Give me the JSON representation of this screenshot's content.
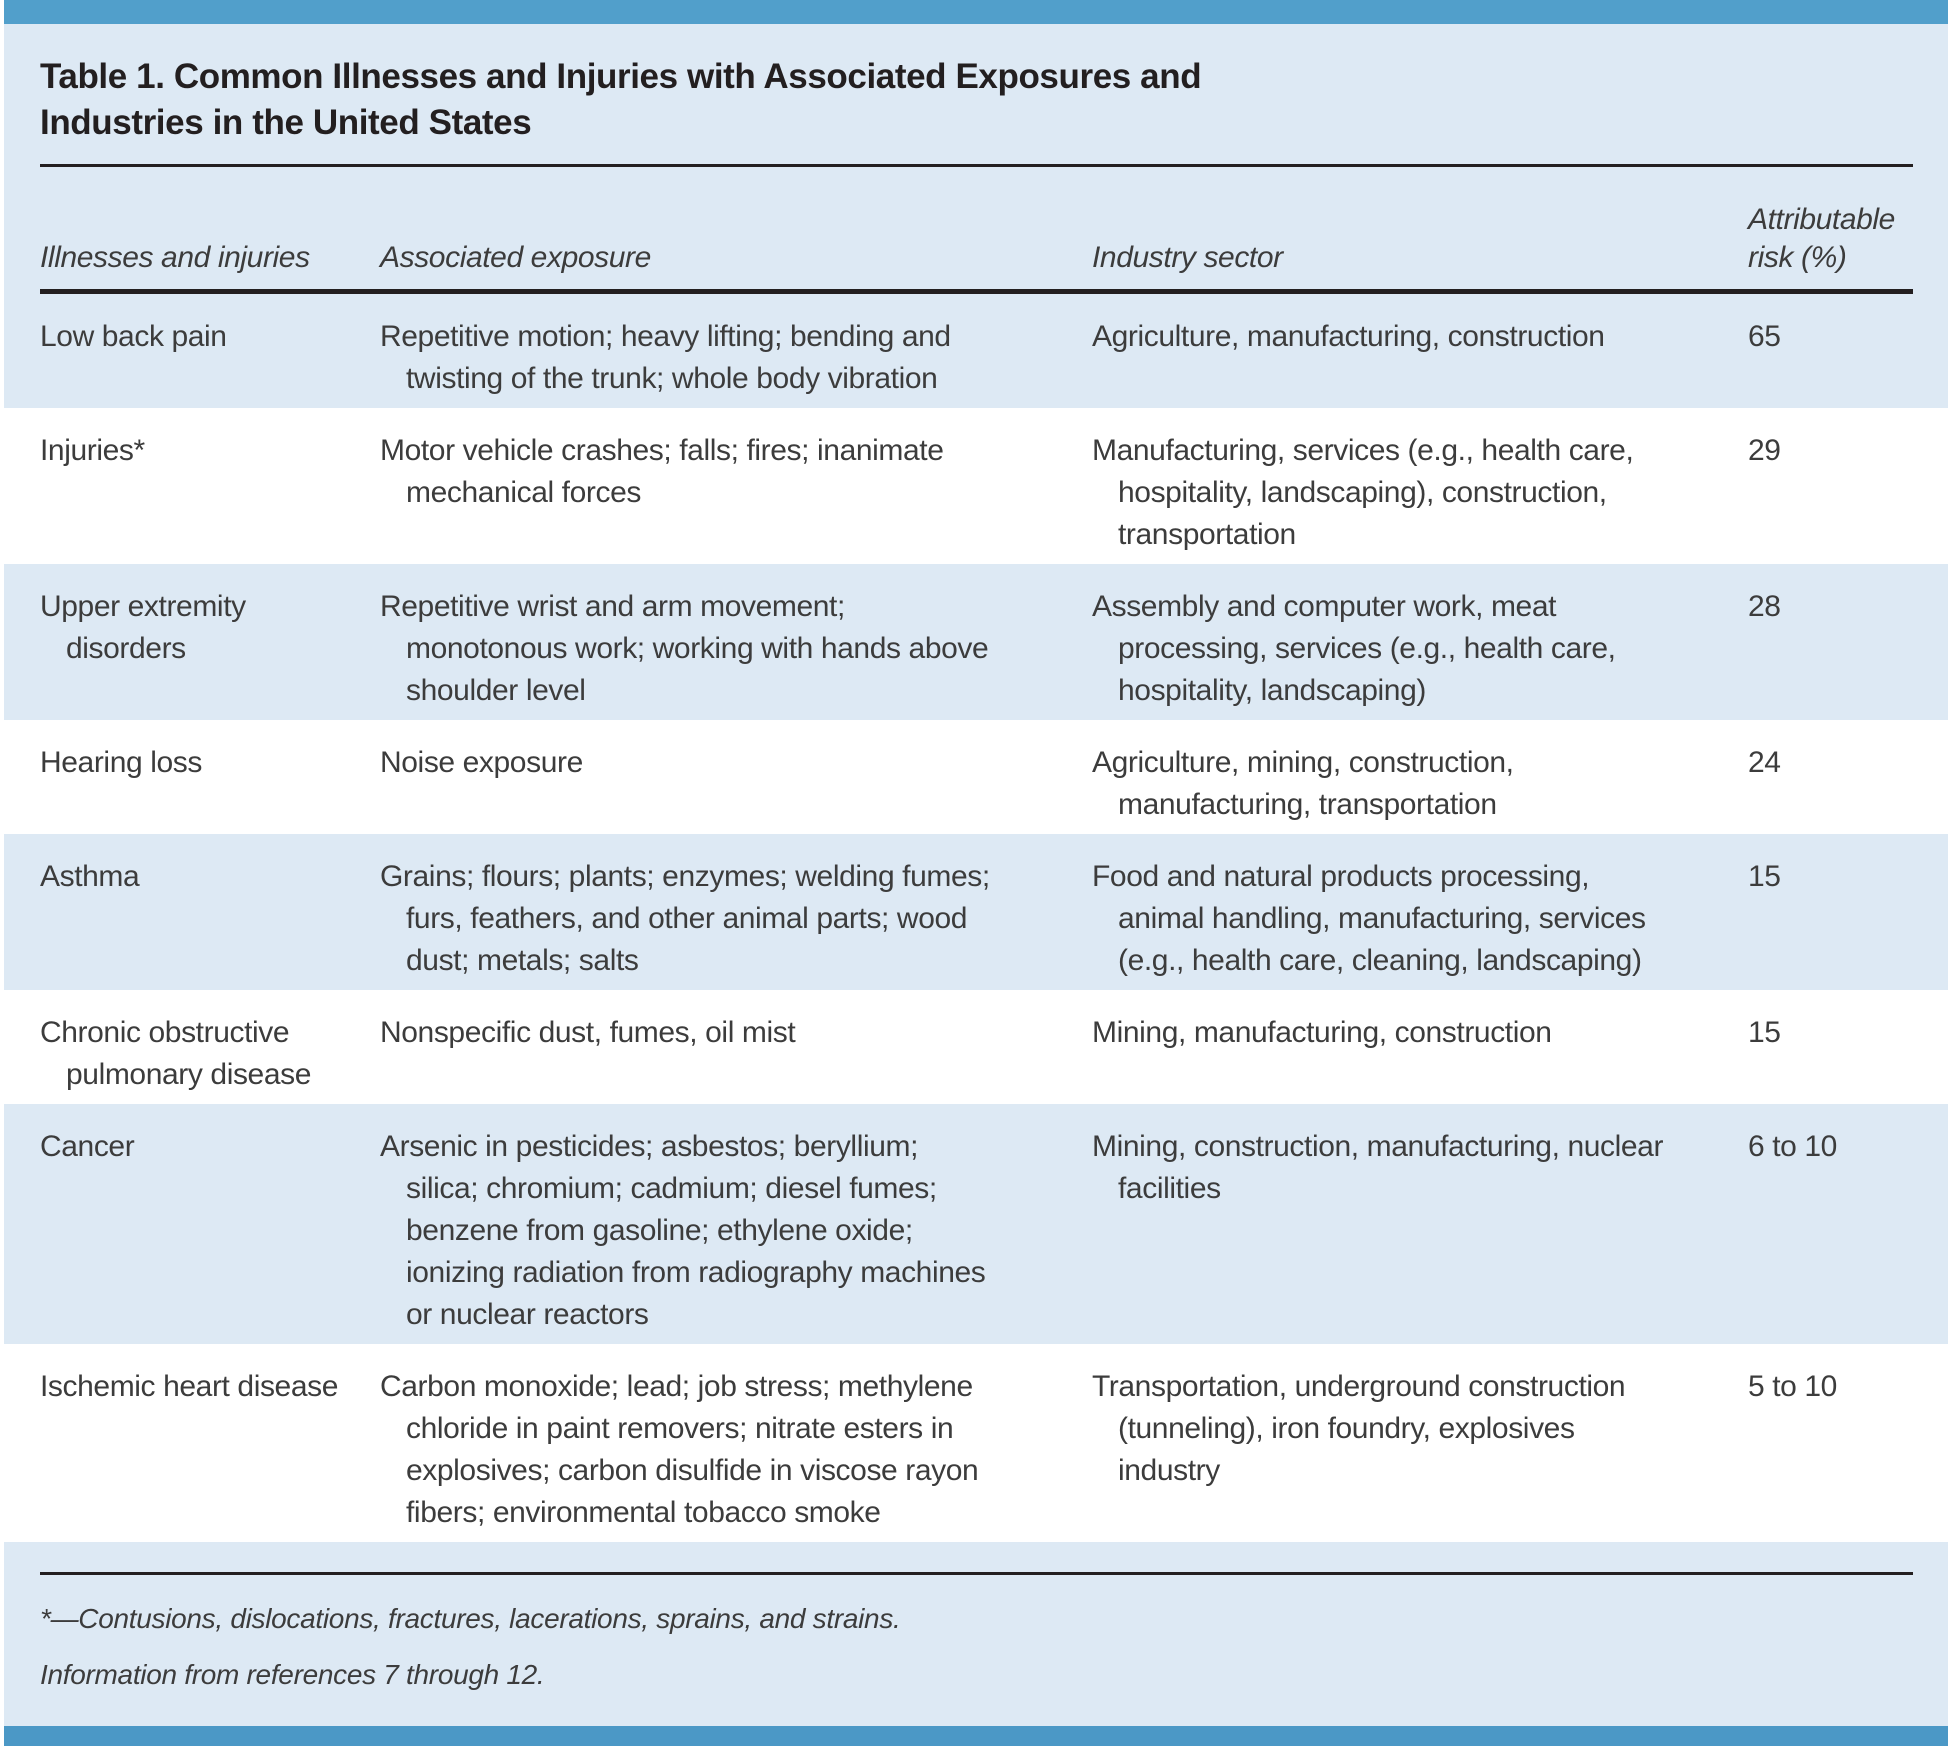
{
  "table": {
    "title": "Table 1. Common Illnesses and Injuries with Associated Exposures and Industries in the United States",
    "columns": [
      "Illnesses and injuries",
      "Associated exposure",
      "Industry sector",
      "Attributable risk (%)"
    ],
    "rows": [
      {
        "illness": "Low back pain",
        "exposure": "Repetitive motion; heavy lifting; bending and twisting of the trunk; whole body vibration",
        "industry": "Agriculture, manufacturing, construction",
        "risk": "65"
      },
      {
        "illness": "Injuries*",
        "exposure": "Motor vehicle crashes; falls; fires; inanimate mechanical forces",
        "industry": "Manufacturing, services (e.g., health care, hospitality, landscaping), construction, transportation",
        "risk": "29"
      },
      {
        "illness": "Upper extremity disorders",
        "exposure": "Repetitive wrist and arm movement; monotonous work; working with hands above shoulder level",
        "industry": "Assembly and computer work, meat processing, services (e.g., health care, hospitality, landscaping)",
        "risk": "28"
      },
      {
        "illness": "Hearing loss",
        "exposure": "Noise exposure",
        "industry": "Agriculture, mining, construction, manufacturing, transportation",
        "risk": "24"
      },
      {
        "illness": "Asthma",
        "exposure": "Grains; flours; plants; enzymes; welding fumes; furs, feathers, and other animal parts; wood dust; metals; salts",
        "industry": "Food and natural products processing, animal handling, manufacturing, services (e.g., health care, cleaning, landscaping)",
        "risk": "15"
      },
      {
        "illness": "Chronic obstructive pulmonary disease",
        "exposure": "Nonspecific dust, fumes, oil mist",
        "industry": "Mining, manufacturing, construction",
        "risk": "15"
      },
      {
        "illness": "Cancer",
        "exposure": "Arsenic in pesticides; asbestos; beryllium; silica; chromium; cadmium; diesel fumes; benzene from gasoline; ethylene oxide; ionizing radiation from radiography machines or nuclear reactors",
        "industry": "Mining, construction, manufacturing, nuclear facilities",
        "risk": "6 to 10"
      },
      {
        "illness": "Ischemic heart disease",
        "exposure": "Carbon monoxide; lead; job stress; methylene chloride in paint removers; nitrate esters in explosives; carbon disulfide in viscose rayon fibers; environmental tobacco smoke",
        "industry": "Transportation, underground construction (tunneling), iron foundry, explosives industry",
        "risk": "5 to 10"
      }
    ],
    "footnotes": [
      "*—Contusions, dislocations, fractures, lacerations, sprains, and strains.",
      "Information from references 7 through 12."
    ],
    "colors": {
      "accent_bar_top": "#519fcb",
      "accent_bar_bottom": "#4b98c6",
      "table_background": "#dde9f4",
      "alternate_row_background": "#ffffff",
      "rule_color": "#231f20",
      "title_text": "#231f20",
      "body_text": "#3c3c3c"
    }
  }
}
